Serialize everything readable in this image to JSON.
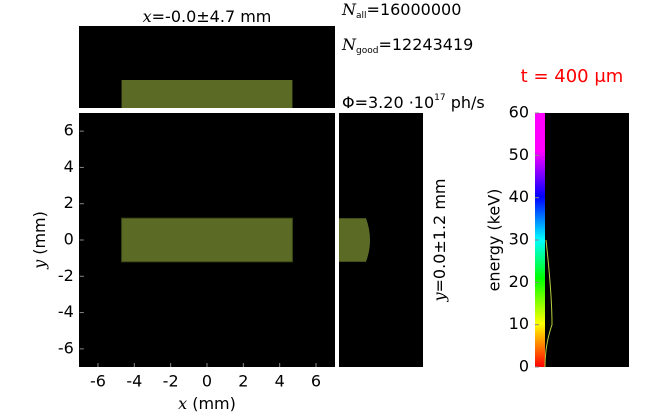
{
  "chart_data": [
    {
      "type": "beam2d",
      "title": {
        "var": "x",
        "text": "=-0.0±4.7 mm"
      },
      "side_label": {
        "var": "y",
        "text": "=0.0±1.2 mm"
      },
      "x_label": {
        "var": "x",
        "text": " (mm)"
      },
      "y_label": {
        "var": "y",
        "text": " (mm)"
      },
      "xlim": [
        -7,
        7
      ],
      "ylim": [
        -7,
        7
      ],
      "xticks": [
        -6,
        -4,
        -2,
        0,
        2,
        4,
        6
      ],
      "yticks": [
        -6,
        -4,
        -2,
        0,
        2,
        4,
        6
      ],
      "beam": {
        "x": [
          -4.7,
          4.7
        ],
        "y": [
          -1.2,
          1.2
        ]
      },
      "color": "#5b6b26"
    },
    {
      "type": "energy",
      "y_label": "energy (keV)",
      "ylim": [
        0,
        60
      ],
      "yticks": [
        0,
        10,
        20,
        30,
        40,
        50,
        60
      ],
      "peak": 10
    },
    {
      "type": "info",
      "n_all": {
        "symbol": "N",
        "sub": "all",
        "text": "=16000000"
      },
      "n_good": {
        "symbol": "N",
        "sub": "good",
        "text": "=12243419"
      },
      "flux": {
        "symbol": "Φ",
        "text": "=3.20 ·10",
        "exp": "17",
        "unit": " ph/s"
      },
      "thickness": "t = 400 μm"
    }
  ]
}
